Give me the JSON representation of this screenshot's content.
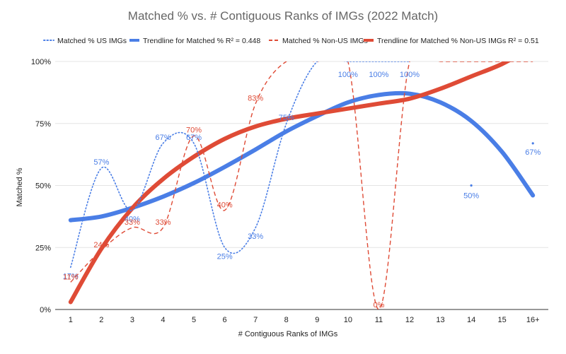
{
  "chart_data": {
    "type": "line",
    "title": "Matched % vs. # Contiguous Ranks of IMGs (2022 Match)",
    "xlabel": "# Contiguous Ranks of IMGs",
    "ylabel": "Matched %",
    "categories": [
      "1",
      "2",
      "3",
      "4",
      "5",
      "6",
      "7",
      "8",
      "9",
      "10",
      "11",
      "12",
      "13",
      "14",
      "15",
      "16+"
    ],
    "yticks": [
      "0%",
      "25%",
      "50%",
      "75%",
      "100%"
    ],
    "ylim": [
      0,
      100
    ],
    "colors": {
      "us": "#4a7ee6",
      "nonus": "#df4b36",
      "grid": "#e4e4e4",
      "axis": "#333333"
    },
    "legend": [
      {
        "label": "Matched % US IMGs",
        "style": "dotted",
        "series": "us"
      },
      {
        "label": "Trendline for Matched % R² = 0.448",
        "style": "solid",
        "series": "us"
      },
      {
        "label": "Matched % Non-US IMGs",
        "style": "dashed",
        "series": "nonus"
      },
      {
        "label": "Trendline for Matched % Non-US IMGs R² = 0.51",
        "style": "solid",
        "series": "nonus"
      }
    ],
    "series": [
      {
        "name": "Matched % US IMGs",
        "values": [
          17,
          57,
          40,
          67,
          67,
          25,
          33,
          75,
          100,
          100,
          100,
          100,
          null,
          50,
          null,
          67
        ],
        "labels": [
          "17%",
          "57%",
          "40%",
          "67%",
          "67%",
          "25%",
          "33%",
          "75%",
          "",
          "100%",
          "100%",
          "100%",
          "",
          "50%",
          "",
          "67%"
        ]
      },
      {
        "name": "Matched % Non-US IMGs",
        "values": [
          11,
          24,
          33,
          33,
          70,
          40,
          83,
          100,
          100,
          100,
          0,
          100,
          100,
          100,
          100,
          100
        ],
        "labels": [
          "11%",
          "24%",
          "33%",
          "33%",
          "70%",
          "40%",
          "83%",
          "",
          "",
          "",
          "0%",
          "",
          "",
          "",
          "",
          ""
        ]
      },
      {
        "name": "Trendline for Matched % R² = 0.448",
        "values": [
          36,
          37.5,
          41,
          45.5,
          51,
          57.5,
          64.5,
          71.8,
          78,
          83.5,
          86.5,
          87,
          83.5,
          76,
          63.5,
          46
        ]
      },
      {
        "name": "Trendline for Matched % Non-US IMGs R² = 0.51",
        "values": [
          3,
          24.5,
          40.8,
          52.6,
          61.6,
          68.8,
          73.8,
          76.9,
          79,
          81,
          83,
          85,
          89,
          94,
          99,
          106
        ]
      }
    ]
  }
}
